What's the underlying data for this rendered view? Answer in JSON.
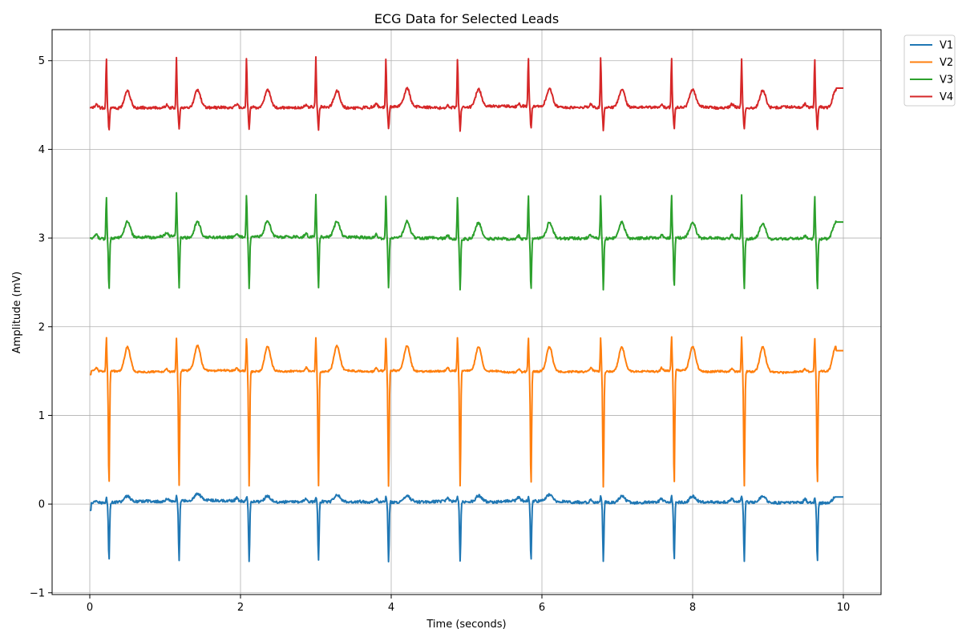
{
  "chart_data": {
    "type": "line",
    "title": "ECG Data for Selected Leads",
    "xlabel": "Time (seconds)",
    "ylabel": "Amplitude (mV)",
    "xlim": [
      -0.5,
      10.5
    ],
    "ylim": [
      -1.02,
      5.35
    ],
    "xticks": [
      0,
      2,
      4,
      6,
      8,
      10
    ],
    "yticks": [
      -1,
      0,
      1,
      2,
      3,
      4,
      5
    ],
    "xtick_labels": [
      "0",
      "2",
      "4",
      "6",
      "8",
      "10"
    ],
    "ytick_labels": [
      "−1",
      "0",
      "1",
      "2",
      "3",
      "4",
      "5"
    ],
    "grid": true,
    "legend_position": "outside-top-right",
    "beats": [
      0.22,
      1.15,
      2.08,
      3.0,
      3.93,
      4.88,
      5.82,
      6.78,
      7.72,
      8.65,
      9.62
    ],
    "series": [
      {
        "name": "V1",
        "color": "#1f77b4",
        "baseline": 0.02,
        "r_peak": 0.08,
        "s_trough": -0.65,
        "t_wave": 0.07,
        "noise": 0.03,
        "start_value": -0.07,
        "end_value": 0.08
      },
      {
        "name": "V2",
        "color": "#ff7f0e",
        "baseline": 1.5,
        "r_peak": 1.88,
        "s_trough": 0.2,
        "t_wave": 0.28,
        "noise": 0.02,
        "start_value": 1.46,
        "end_value": 1.73
      },
      {
        "name": "V3",
        "color": "#2ca02c",
        "baseline": 3.0,
        "r_peak": 3.48,
        "s_trough": 2.43,
        "t_wave": 0.18,
        "noise": 0.03,
        "start_value": 3.0,
        "end_value": 3.18
      },
      {
        "name": "V4",
        "color": "#d62728",
        "baseline": 4.47,
        "r_peak": 5.03,
        "s_trough": 4.22,
        "t_wave": 0.2,
        "noise": 0.03,
        "start_value": 4.47,
        "end_value": 4.69
      }
    ],
    "x_range": [
      0,
      10
    ]
  }
}
